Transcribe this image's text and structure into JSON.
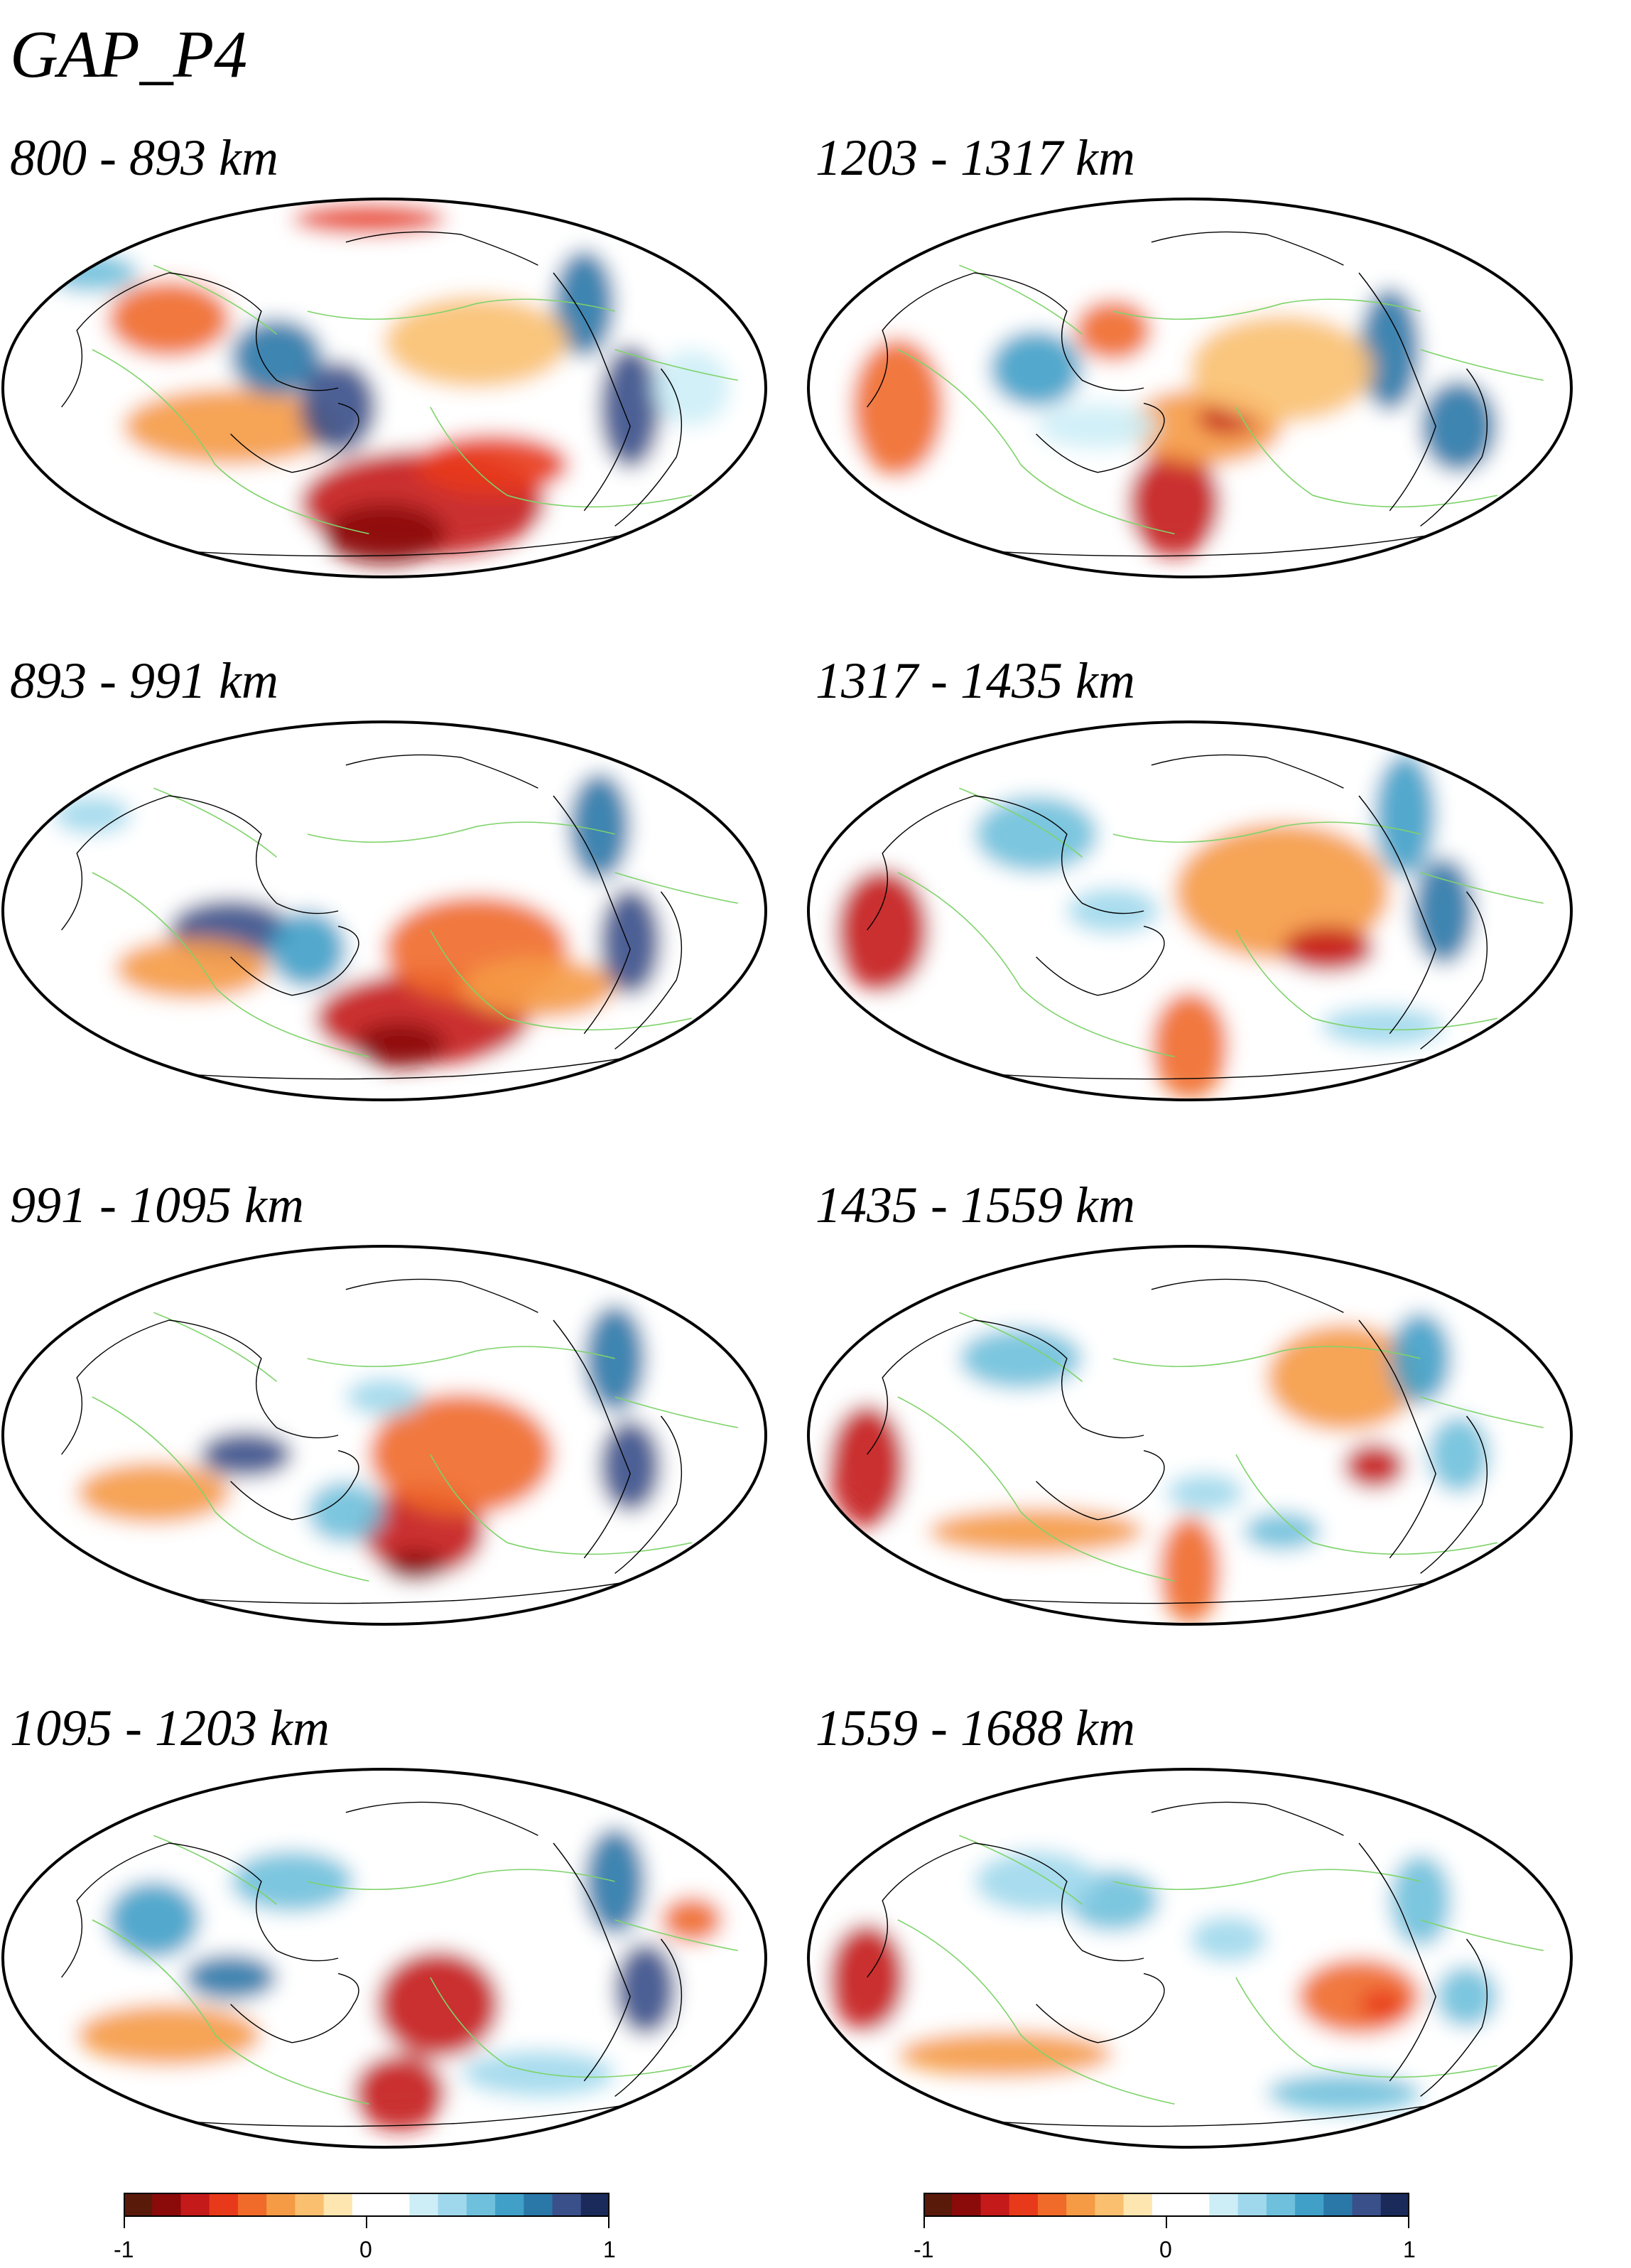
{
  "title": "GAP_P4",
  "panels": [
    {
      "label": "800 - 893 km"
    },
    {
      "label": "1203 - 1317 km"
    },
    {
      "label": "893 - 991 km"
    },
    {
      "label": "1317 - 1435 km"
    },
    {
      "label": "991 - 1095 km"
    },
    {
      "label": "1435 - 1559 km"
    },
    {
      "label": "1095 - 1203 km"
    },
    {
      "label": "1559 - 1688 km"
    }
  ],
  "colorbar": {
    "min_label": "-1",
    "mid_label": "0",
    "max_label": "1",
    "colors": [
      "#5a1a0a",
      "#8b0a0a",
      "#c41a1a",
      "#e83a1a",
      "#f06a2a",
      "#f59a45",
      "#fac070",
      "#fde6b0",
      "#ffffff",
      "#ffffff",
      "#cdeef7",
      "#9fd8ec",
      "#6ec0dc",
      "#40a0c8",
      "#2a78a8",
      "#3a508a",
      "#1a2a5a"
    ]
  },
  "colors": {
    "coastline": "#000000",
    "plate_boundary": "#7ed36a",
    "outline": "#000000"
  }
}
